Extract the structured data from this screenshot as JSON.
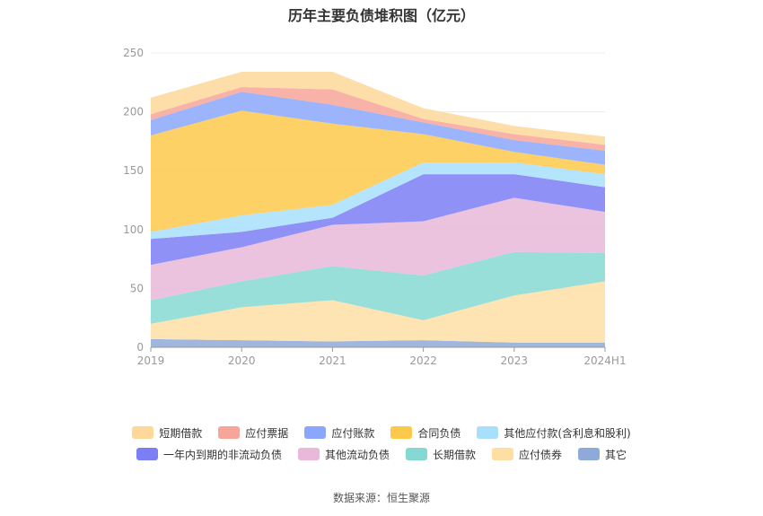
{
  "title": "历年主要负债堆积图（亿元）",
  "source": "数据来源：恒生聚源",
  "chart_data": {
    "type": "area",
    "stacked": true,
    "title": "历年主要负债堆积图（亿元）",
    "categories": [
      "2019",
      "2020",
      "2021",
      "2022",
      "2023",
      "2024H1"
    ],
    "ylim": [
      0,
      250
    ],
    "yticks": [
      0,
      50,
      100,
      150,
      200,
      250
    ],
    "grid": true,
    "legend_position": "bottom",
    "series": [
      {
        "name": "其它",
        "color": "#8eaad8",
        "values": [
          7,
          6,
          5,
          6,
          4,
          4
        ]
      },
      {
        "name": "应付债券",
        "color": "#fddfa4",
        "values": [
          13,
          28,
          35,
          17,
          40,
          52
        ]
      },
      {
        "name": "长期借款",
        "color": "#86d9d3",
        "values": [
          20,
          22,
          29,
          38,
          37,
          24
        ]
      },
      {
        "name": "其他流动负债",
        "color": "#e8b9d9",
        "values": [
          30,
          29,
          35,
          46,
          46,
          35
        ]
      },
      {
        "name": "一年内到期的非流动负债",
        "color": "#7b7ef5",
        "values": [
          22,
          13,
          6,
          40,
          20,
          21
        ]
      },
      {
        "name": "其他应付款(含利息和股利)",
        "color": "#a8e0fb",
        "values": [
          6,
          14,
          11,
          10,
          10,
          11
        ]
      },
      {
        "name": "合同负债",
        "color": "#fdc94a",
        "values": [
          82,
          89,
          69,
          24,
          9,
          8
        ]
      },
      {
        "name": "应付账款",
        "color": "#8ba7fb",
        "values": [
          13,
          16,
          16,
          10,
          10,
          12
        ]
      },
      {
        "name": "应付票据",
        "color": "#f7a598",
        "values": [
          5,
          4,
          13,
          3,
          5,
          5
        ]
      },
      {
        "name": "短期借款",
        "color": "#fdd89a",
        "values": [
          14,
          13,
          15,
          9,
          7,
          7
        ]
      }
    ],
    "legend_rows": [
      [
        "短期借款",
        "应付票据",
        "应付账款",
        "合同负债",
        "其他应付款(含利息和股利)"
      ],
      [
        "一年内到期的非流动负债",
        "其他流动负债",
        "长期借款",
        "应付债券",
        "其它"
      ]
    ]
  }
}
